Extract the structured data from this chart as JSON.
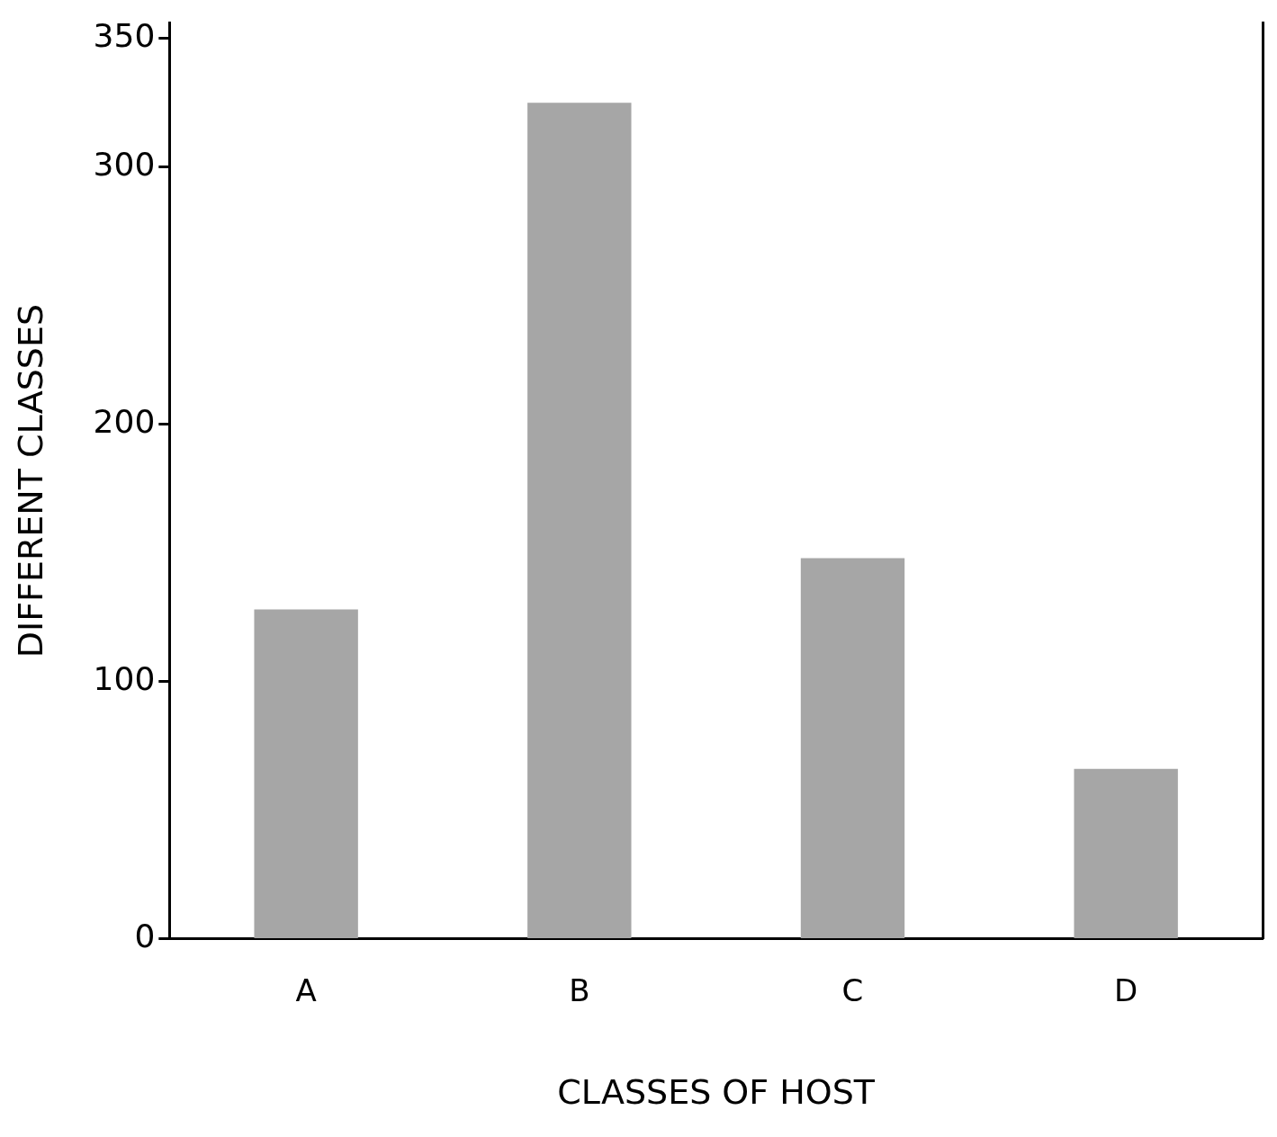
{
  "chart_data": {
    "type": "bar",
    "xlabel": "CLASSES OF HOST",
    "ylabel": "DIFFERENT CLASSES",
    "categories": [
      "A",
      "B",
      "C",
      "D"
    ],
    "values": [
      128,
      325,
      148,
      66
    ],
    "color": "#a6a6a6",
    "ylim": [
      0,
      356
    ],
    "yticks": [
      0,
      100,
      200,
      300,
      350
    ],
    "grid": false,
    "legend": false
  }
}
